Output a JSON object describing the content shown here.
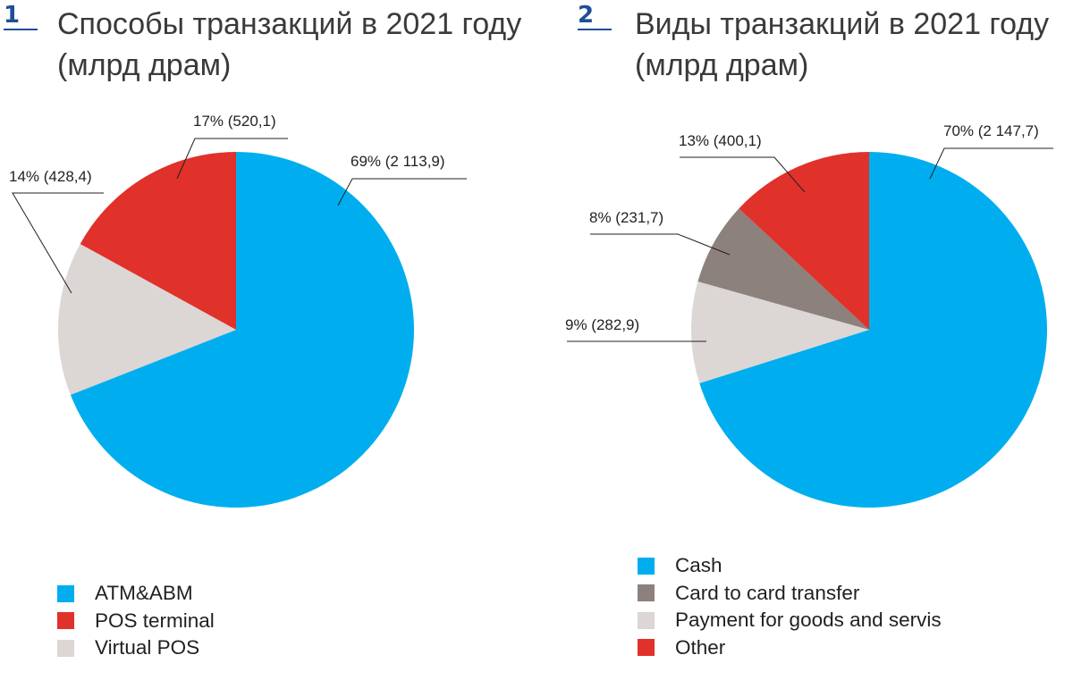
{
  "chart_data": [
    {
      "type": "pie",
      "number": "1",
      "title": "Способы транзакций в 2021 году (млрд драм)",
      "title_lines": [
        "Способы транзакций в 2021 году",
        "(млрд драм)"
      ],
      "slices": [
        {
          "name": "ATM&ABM",
          "value": 2113.9,
          "percent": 69,
          "label": "69% (2 113,9)",
          "color": "#00aeef"
        },
        {
          "name": "Virtual POS",
          "value": 428.4,
          "percent": 14,
          "label": "14% (428,4)",
          "color": "#dcd6d4"
        },
        {
          "name": "POS terminal",
          "value": 520.1,
          "percent": 17,
          "label": "17% (520,1)",
          "color": "#e0312a"
        }
      ],
      "legend": [
        {
          "label": "ATM&ABM",
          "color": "#00aeef"
        },
        {
          "label": "POS terminal",
          "color": "#e0312a"
        },
        {
          "label": "Virtual POS",
          "color": "#dcd6d4"
        }
      ],
      "legend_position": "bottom-left"
    },
    {
      "type": "pie",
      "number": "2",
      "title": "Виды транзакций в 2021 году (млрд драм)",
      "title_lines": [
        "Виды транзакций в 2021 году",
        "(млрд драм)"
      ],
      "slices": [
        {
          "name": "Cash",
          "value": 2147.7,
          "percent": 70,
          "label": "70% (2 147,7)",
          "color": "#00aeef"
        },
        {
          "name": "Payment for goods and servis",
          "value": 282.9,
          "percent": 9,
          "label": "9% (282,9)",
          "color": "#dcd6d4"
        },
        {
          "name": "Card to card transfer",
          "value": 231.7,
          "percent": 8,
          "label": "8% (231,7)",
          "color": "#8c817d"
        },
        {
          "name": "Other",
          "value": 400.1,
          "percent": 13,
          "label": "13% (400,1)",
          "color": "#e0312a"
        }
      ],
      "legend": [
        {
          "label": "Cash",
          "color": "#00aeef"
        },
        {
          "label": "Card to card transfer",
          "color": "#8c817d"
        },
        {
          "label": "Payment for goods and servis",
          "color": "#dcd6d4"
        },
        {
          "label": "Other",
          "color": "#e0312a"
        }
      ],
      "legend_position": "bottom-left"
    }
  ]
}
